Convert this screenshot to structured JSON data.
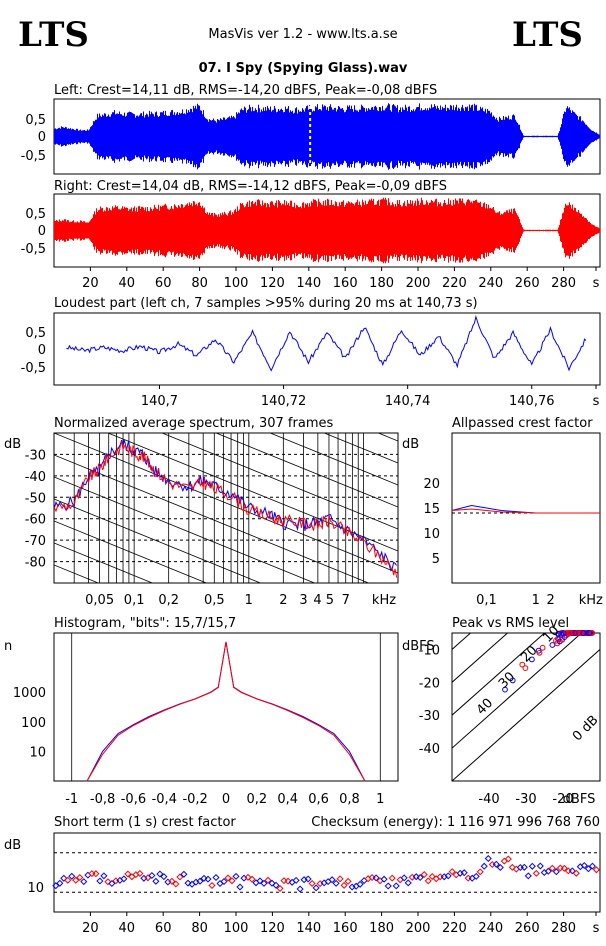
{
  "header": {
    "logo_left": "LTS",
    "logo_right": "LTS",
    "app_version": "MasVis ver 1.2 - www.lts.a.se",
    "file_name": "07. I Spy (Spying Glass).wav"
  },
  "colors": {
    "left": "#0000ff",
    "right": "#ff0000",
    "grid": "#000000"
  },
  "charts": {
    "left_wave": {
      "type": "area",
      "title": "Left: Crest=14,11 dB, RMS=-14,20 dBFS, Peak=-0,08 dBFS",
      "yticks": [
        "0,5",
        "0",
        "-0,5"
      ],
      "ylim": [
        -1,
        1
      ],
      "xlim": [
        0,
        300
      ],
      "marker_time_s": 140.73,
      "envelope": [
        0.25,
        0.3,
        0.25,
        0.2,
        0.2,
        0.65,
        0.7,
        0.75,
        0.72,
        0.7,
        0.7,
        0.72,
        0.72,
        0.75,
        0.78,
        0.8,
        0.9,
        0.95,
        0.55,
        0.5,
        0.55,
        0.6,
        0.85,
        0.9,
        0.9,
        0.88,
        0.88,
        0.9,
        0.85,
        0.85,
        0.9,
        0.92,
        0.92,
        0.9,
        0.88,
        0.9,
        0.9,
        0.92,
        0.95,
        0.95,
        0.9,
        0.9,
        0.92,
        0.95,
        0.95,
        0.92,
        0.92,
        0.95,
        0.95,
        0.95,
        0.85,
        0.8,
        0.55,
        0.6,
        0.65,
        0.02,
        0.02,
        0.02,
        0.02,
        0.02,
        0.95,
        0.7,
        0.5,
        0.2,
        0.05
      ]
    },
    "right_wave": {
      "type": "area",
      "title": "Right: Crest=14,04 dB, RMS=-14,12 dBFS, Peak=-0,09 dBFS",
      "yticks": [
        "0,5",
        "0",
        "-0,5"
      ],
      "ylim": [
        -1,
        1
      ],
      "xlabels": [
        "20",
        "40",
        "60",
        "80",
        "100",
        "120",
        "140",
        "160",
        "180",
        "200",
        "220",
        "240",
        "260",
        "280",
        "s"
      ],
      "envelope": [
        0.3,
        0.35,
        0.3,
        0.3,
        0.25,
        0.7,
        0.72,
        0.75,
        0.72,
        0.7,
        0.72,
        0.72,
        0.75,
        0.78,
        0.8,
        0.85,
        0.9,
        0.95,
        0.55,
        0.5,
        0.55,
        0.6,
        0.85,
        0.9,
        0.9,
        0.88,
        0.88,
        0.9,
        0.85,
        0.85,
        0.9,
        0.92,
        0.92,
        0.9,
        0.88,
        0.9,
        0.9,
        0.92,
        0.95,
        0.95,
        0.9,
        0.9,
        0.92,
        0.95,
        0.95,
        0.92,
        0.92,
        0.95,
        0.95,
        0.95,
        0.85,
        0.8,
        0.55,
        0.6,
        0.65,
        0.02,
        0.02,
        0.02,
        0.02,
        0.02,
        0.95,
        0.7,
        0.5,
        0.2,
        0.05
      ]
    },
    "loudest": {
      "type": "line",
      "title": "Loudest part (left  ch, 7 samples >95% during 20 ms at 140,73 s)",
      "yticks": [
        "0,5",
        "0",
        "-0,5"
      ],
      "xlabels": [
        "140,7",
        "140,72",
        "140,74",
        "140,76",
        "s"
      ],
      "x": [
        140.685,
        140.688,
        140.691,
        140.694,
        140.697,
        140.7,
        140.703,
        140.706,
        140.709,
        140.712,
        140.715,
        140.718,
        140.721,
        140.724,
        140.727,
        140.73,
        140.733,
        140.736,
        140.739,
        140.742,
        140.745,
        140.748,
        140.751,
        140.754,
        140.757,
        140.76,
        140.763,
        140.766,
        140.769
      ],
      "values": [
        0.05,
        -0.05,
        0.05,
        -0.05,
        0.08,
        -0.1,
        0.15,
        -0.2,
        0.3,
        -0.4,
        0.5,
        -0.6,
        0.55,
        -0.4,
        0.5,
        -0.3,
        0.7,
        -0.5,
        0.6,
        -0.2,
        0.4,
        -0.5,
        0.95,
        -0.3,
        0.5,
        -0.5,
        0.6,
        -0.6,
        0.4
      ]
    },
    "spectrum": {
      "type": "line",
      "title": "Normalized average spectrum, 307 frames",
      "ylabel": "dB",
      "yticks": [
        "-30",
        "-40",
        "-50",
        "-60",
        "-70",
        "-80"
      ],
      "xlabels": [
        "0,05",
        "0,1",
        "0,2",
        "0,5",
        "1",
        "2",
        "3",
        "4 5",
        "7",
        "kHz"
      ],
      "x_khz": [
        0.02,
        0.03,
        0.04,
        0.05,
        0.06,
        0.08,
        0.1,
        0.12,
        0.15,
        0.2,
        0.3,
        0.4,
        0.5,
        0.7,
        1,
        1.5,
        2,
        3,
        4,
        5,
        7,
        10,
        15,
        20
      ],
      "left": [
        -55,
        -52,
        -40,
        -38,
        -30,
        -25,
        -28,
        -30,
        -38,
        -42,
        -45,
        -42,
        -45,
        -48,
        -55,
        -58,
        -62,
        -63,
        -62,
        -60,
        -65,
        -70,
        -78,
        -85
      ],
      "right": [
        -55,
        -53,
        -41,
        -37,
        -31,
        -26,
        -29,
        -31,
        -37,
        -43,
        -46,
        -43,
        -46,
        -49,
        -56,
        -59,
        -61,
        -62,
        -63,
        -61,
        -66,
        -71,
        -79,
        -86
      ]
    },
    "allpass": {
      "type": "line",
      "title": "Allpassed crest factor",
      "ylabel": "dB",
      "yticks": [
        "20",
        "15",
        "10",
        "5"
      ],
      "xlabels": [
        "0,1",
        "1",
        "2",
        "kHz"
      ],
      "x_khz": [
        0.02,
        0.05,
        0.1,
        0.2,
        0.5,
        1,
        2,
        5,
        10,
        20
      ],
      "left": [
        14.5,
        15.5,
        15,
        14.5,
        14.2,
        14,
        14,
        14,
        14,
        14
      ],
      "right": [
        14.5,
        14.8,
        14.5,
        14.2,
        14.1,
        14,
        14,
        14,
        14,
        14
      ]
    },
    "histogram": {
      "type": "line",
      "title": "Histogram, \"bits\": 15,7/15,7",
      "ylabel": "n",
      "yticks": [
        "1000",
        "100",
        "10"
      ],
      "xlabels": [
        "-1",
        "-0,8",
        "-0,6",
        "-0,4",
        "-0,2",
        "0",
        "0,2",
        "0,4",
        "0,6",
        "0,8",
        "1"
      ],
      "x": [
        -0.9,
        -0.8,
        -0.7,
        -0.6,
        -0.5,
        -0.4,
        -0.3,
        -0.2,
        -0.1,
        -0.05,
        0,
        0.05,
        0.1,
        0.2,
        0.3,
        0.4,
        0.5,
        0.6,
        0.7,
        0.8,
        0.9
      ],
      "left": [
        1,
        10,
        40,
        80,
        150,
        250,
        400,
        600,
        1000,
        1500,
        50000,
        1500,
        1000,
        600,
        400,
        250,
        150,
        80,
        40,
        10,
        1
      ],
      "right": [
        1,
        8,
        35,
        75,
        140,
        240,
        390,
        590,
        980,
        1450,
        50000,
        1450,
        980,
        590,
        390,
        240,
        140,
        75,
        35,
        8,
        1
      ]
    },
    "peak_rms": {
      "type": "scatter",
      "title": "Peak vs RMS level",
      "ylabel": "dBFS",
      "xlabel": "dBFS",
      "yticks": [
        "-10",
        "-20",
        "-30",
        "-40"
      ],
      "xticks": [
        "-40",
        "-30",
        "-20"
      ],
      "diag_labels": [
        "40",
        "30",
        "20",
        "10",
        "0 dB"
      ]
    },
    "short_crest": {
      "type": "scatter",
      "title": "Short term (1 s) crest factor",
      "checksum": "Checksum (energy):  1 116 971 996 768 760",
      "ylabel": "dB",
      "yticks": [
        "10"
      ],
      "xlabels": [
        "20",
        "40",
        "60",
        "80",
        "100",
        "120",
        "140",
        "160",
        "180",
        "200",
        "220",
        "240",
        "260",
        "280",
        "s"
      ]
    }
  }
}
